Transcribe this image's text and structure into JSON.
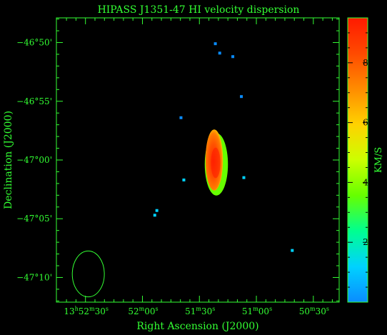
{
  "colors": {
    "axis": "#33ff33",
    "background": "#000000",
    "colormap": [
      "#0a8cff",
      "#00d2ff",
      "#00ff90",
      "#66ff00",
      "#ccff00",
      "#ffd200",
      "#ff8c00",
      "#ff4a00",
      "#ff1a00"
    ]
  },
  "chart_data": {
    "type": "heatmap",
    "title": "HIPASS J1351-47   HI velocity dispersion",
    "xlabel": "Right Ascension (J2000)",
    "ylabel": "Declination (J2000)",
    "x_ticks": [
      {
        "h": "13",
        "m": "52",
        "s": "30",
        "sec": 48750
      },
      {
        "h": "",
        "m": "52",
        "s": "00",
        "sec": 48720
      },
      {
        "h": "",
        "m": "51",
        "s": "30",
        "sec": 48690
      },
      {
        "h": "",
        "m": "51",
        "s": "00",
        "sec": 48660
      },
      {
        "h": "",
        "m": "50",
        "s": "30",
        "sec": 48630
      }
    ],
    "xlim_sec": [
      48765.3,
      48616.4
    ],
    "y_ticks": [
      {
        "text": "−46°50'",
        "arcmin": -2810
      },
      {
        "text": "−46°55'",
        "arcmin": -2815
      },
      {
        "text": "−47°00'",
        "arcmin": -2820
      },
      {
        "text": "−47°05'",
        "arcmin": -2825
      },
      {
        "text": "−47°10'",
        "arcmin": -2830
      }
    ],
    "ylim_arcmin": [
      -2832.1,
      -2807.9
    ],
    "colorbar": {
      "label": "KM/S",
      "range": [
        0,
        9.5
      ],
      "ticks": [
        2,
        4,
        6,
        8
      ]
    },
    "beam": {
      "ra_sec": 48748.5,
      "dec_arcmin": -2829.7,
      "major_arcmin": 2.3,
      "minor_arcmin": 1.75
    },
    "galaxy": {
      "center_ra_sec": 48682.2,
      "center_dec_arcmin": -2820.0,
      "semi_axis_ra_sec": 4.6,
      "semi_axis_dec_arcmin": 2.6,
      "peak_dispersion_kms": 9.2,
      "edge_dispersion_kms": 3.5
    },
    "clumps": [
      {
        "ra_sec": 48681.6,
        "dec_arcmin": -2810.1,
        "value_kms": 0.4
      },
      {
        "ra_sec": 48679.3,
        "dec_arcmin": -2810.9,
        "value_kms": 0.4
      },
      {
        "ra_sec": 48672.4,
        "dec_arcmin": -2811.2,
        "value_kms": 0.5
      },
      {
        "ra_sec": 48667.9,
        "dec_arcmin": -2814.6,
        "value_kms": 0.4
      },
      {
        "ra_sec": 48699.7,
        "dec_arcmin": -2816.4,
        "value_kms": 0.4
      },
      {
        "ra_sec": 48698.2,
        "dec_arcmin": -2821.7,
        "value_kms": 0.8
      },
      {
        "ra_sec": 48712.4,
        "dec_arcmin": -2824.3,
        "value_kms": 0.6
      },
      {
        "ra_sec": 48713.5,
        "dec_arcmin": -2824.7,
        "value_kms": 0.6
      },
      {
        "ra_sec": 48666.6,
        "dec_arcmin": -2821.5,
        "value_kms": 1.6
      },
      {
        "ra_sec": 48641.1,
        "dec_arcmin": -2827.7,
        "value_kms": 0.6
      }
    ]
  }
}
